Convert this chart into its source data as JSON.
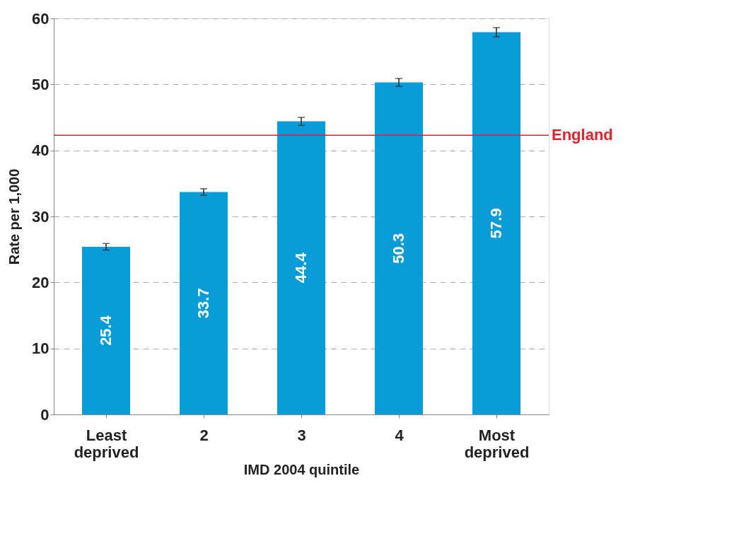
{
  "chart_data": {
    "type": "bar",
    "xlabel": "IMD 2004 quintile",
    "ylabel": "Rate per 1,000",
    "categories": [
      "Least deprived",
      "2",
      "3",
      "4",
      "Most deprived"
    ],
    "values": [
      25.4,
      33.7,
      44.4,
      50.3,
      57.9
    ],
    "errors": [
      0.5,
      0.5,
      0.6,
      0.6,
      0.7
    ],
    "color": "#0a9bd9",
    "ylim": [
      0,
      60
    ],
    "yticks": [
      0,
      10,
      20,
      30,
      40,
      50,
      60
    ],
    "grid": "y",
    "data_labels": true,
    "ref_lines": [
      {
        "axis": "y",
        "value": 42.3,
        "label": "England",
        "color": "#e3202a"
      }
    ]
  }
}
